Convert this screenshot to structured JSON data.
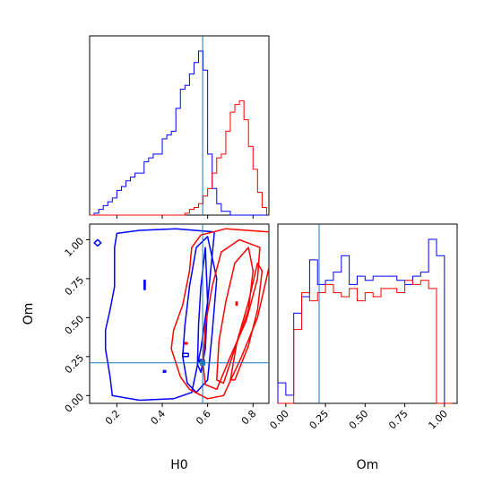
{
  "chart_data": {
    "type": "corner",
    "parameters": [
      "H0",
      "Om"
    ],
    "truth": {
      "H0": 0.578,
      "Om": 0.21
    },
    "colors": {
      "blue_run": "#0000ff",
      "red_run": "#ff0000",
      "truth_line": "#1f77b4"
    },
    "panels": [
      {
        "id": "h0-marginal",
        "type": "histogram",
        "xlim": [
          0.08,
          0.87
        ],
        "x_ticks": [
          0.2,
          0.4,
          0.6,
          0.8
        ],
        "bin_edges": [
          0.08,
          0.1,
          0.12,
          0.14,
          0.16,
          0.18,
          0.2,
          0.22,
          0.24,
          0.26,
          0.28,
          0.3,
          0.32,
          0.34,
          0.36,
          0.38,
          0.4,
          0.42,
          0.44,
          0.46,
          0.48,
          0.5,
          0.52,
          0.54,
          0.56,
          0.58,
          0.6,
          0.62,
          0.64,
          0.66,
          0.68,
          0.7,
          0.72,
          0.74,
          0.76,
          0.78,
          0.8,
          0.82,
          0.84,
          0.86
        ],
        "series": [
          {
            "color": "blue_run",
            "values": [
              0,
              0.5,
              1.5,
              2.5,
              3.5,
              4.5,
              6.5,
              7.5,
              9,
              10,
              11,
              11,
              14,
              15,
              16,
              16,
              20,
              21,
              22,
              28,
              33,
              34,
              37,
              40,
              43,
              38,
              16,
              7,
              3,
              1,
              1,
              0,
              0,
              0,
              0,
              0,
              0,
              0,
              0
            ]
          },
          {
            "color": "red_run",
            "values": [
              0,
              0,
              0,
              0,
              0,
              0,
              0,
              0,
              0,
              0,
              0,
              0,
              0,
              0,
              0,
              0,
              0,
              0,
              0,
              0,
              0,
              0.5,
              1.5,
              2,
              3,
              5,
              7,
              11,
              15,
              16,
              22,
              27,
              29,
              30,
              25,
              18,
              12,
              6,
              2
            ]
          }
        ]
      },
      {
        "id": "om-marginal",
        "type": "histogram",
        "xlim": [
          -0.05,
          1.08
        ],
        "x_ticks": [
          0.0,
          0.25,
          0.5,
          0.75,
          1.0
        ],
        "x_tick_labels": [
          "0.00",
          "0.25",
          "0.50",
          "0.75",
          "1.00"
        ],
        "xlabel": "Om",
        "bin_edges": [
          -0.05,
          0.0,
          0.05,
          0.1,
          0.15,
          0.2,
          0.25,
          0.3,
          0.35,
          0.4,
          0.45,
          0.5,
          0.55,
          0.6,
          0.65,
          0.7,
          0.75,
          0.8,
          0.85,
          0.9,
          0.95,
          1.0,
          1.05
        ],
        "series": [
          {
            "color": "blue_run",
            "values": [
              5,
              2,
              22,
              26,
              35,
              29,
              30,
              32,
              36,
              29,
              31,
              30,
              31,
              31,
              31,
              30,
              29,
              31,
              32,
              40,
              36,
              0
            ]
          },
          {
            "color": "red_run",
            "values": [
              0,
              0,
              18,
              27,
              25,
              27,
              29,
              27,
              26,
              28,
              25,
              27,
              26,
              28,
              28,
              27,
              30,
              29,
              30,
              28,
              0,
              0
            ]
          }
        ]
      },
      {
        "id": "h0-om-joint",
        "type": "contour",
        "xlim": [
          0.08,
          0.87
        ],
        "ylim": [
          -0.05,
          1.1
        ],
        "x_ticks": [
          0.2,
          0.4,
          0.6,
          0.8
        ],
        "y_ticks": [
          0.0,
          0.25,
          0.5,
          0.75,
          1.0
        ],
        "y_tick_labels": [
          "0.00",
          "0.25",
          "0.50",
          "0.75",
          "1.00"
        ],
        "xlabel": "H0",
        "ylabel": "Om",
        "series": [
          {
            "color": "blue_run",
            "contours": [
              [
                [
                  0.18,
                  0.0
                ],
                [
                  0.3,
                  -0.03
                ],
                [
                  0.45,
                  -0.02
                ],
                [
                  0.53,
                  0.02
                ],
                [
                  0.57,
                  0.3
                ],
                [
                  0.6,
                  0.6
                ],
                [
                  0.62,
                  0.9
                ],
                [
                  0.63,
                  1.05
                ],
                [
                  0.46,
                  1.07
                ],
                [
                  0.3,
                  1.06
                ],
                [
                  0.2,
                  1.04
                ],
                [
                  0.19,
                  0.95
                ],
                [
                  0.19,
                  0.7
                ],
                [
                  0.17,
                  0.55
                ],
                [
                  0.15,
                  0.42
                ],
                [
                  0.15,
                  0.3
                ],
                [
                  0.17,
                  0.12
                ]
              ],
              [
                [
                  0.51,
                  0.08
                ],
                [
                  0.55,
                  0.02
                ],
                [
                  0.6,
                  0.1
                ],
                [
                  0.62,
                  0.4
                ],
                [
                  0.64,
                  0.75
                ],
                [
                  0.6,
                  1.02
                ],
                [
                  0.55,
                  0.95
                ],
                [
                  0.52,
                  0.7
                ],
                [
                  0.5,
                  0.45
                ],
                [
                  0.49,
                  0.25
                ]
              ],
              [
                [
                  0.555,
                  0.2
                ],
                [
                  0.57,
                  0.15
                ],
                [
                  0.59,
                  0.3
                ],
                [
                  0.6,
                  0.6
                ],
                [
                  0.59,
                  0.95
                ],
                [
                  0.57,
                  0.7
                ],
                [
                  0.56,
                  0.45
                ]
              ],
              [
                [
                  0.1,
                  0.98
                ],
                [
                  0.115,
                  0.96
                ],
                [
                  0.13,
                  0.98
                ],
                [
                  0.115,
                  1.0
                ]
              ],
              [
                [
                  0.32,
                  0.68
                ],
                [
                  0.325,
                  0.68
                ],
                [
                  0.325,
                  0.74
                ],
                [
                  0.32,
                  0.74
                ]
              ],
              [
                [
                  0.405,
                  0.15
                ],
                [
                  0.415,
                  0.15
                ],
                [
                  0.415,
                  0.16
                ],
                [
                  0.405,
                  0.16
                ]
              ],
              [
                [
                  0.49,
                  0.25
                ],
                [
                  0.515,
                  0.25
                ],
                [
                  0.515,
                  0.27
                ],
                [
                  0.49,
                  0.27
                ]
              ],
              [
                [
                  0.565,
                  0.21
                ],
                [
                  0.585,
                  0.21
                ],
                [
                  0.585,
                  0.23
                ],
                [
                  0.565,
                  0.23
                ]
              ]
            ]
          },
          {
            "color": "red_run",
            "contours": [
              [
                [
                  0.52,
                  0.04
                ],
                [
                  0.6,
                  -0.02
                ],
                [
                  0.67,
                  0.0
                ],
                [
                  0.75,
                  0.25
                ],
                [
                  0.82,
                  0.5
                ],
                [
                  0.87,
                  0.82
                ],
                [
                  0.87,
                  1.05
                ],
                [
                  0.68,
                  1.07
                ],
                [
                  0.57,
                  1.03
                ],
                [
                  0.53,
                  0.95
                ],
                [
                  0.52,
                  0.8
                ],
                [
                  0.49,
                  0.58
                ],
                [
                  0.45,
                  0.42
                ],
                [
                  0.44,
                  0.3
                ],
                [
                  0.48,
                  0.12
                ]
              ],
              [
                [
                  0.59,
                  0.07
                ],
                [
                  0.64,
                  0.04
                ],
                [
                  0.7,
                  0.25
                ],
                [
                  0.77,
                  0.48
                ],
                [
                  0.82,
                  0.75
                ],
                [
                  0.83,
                  0.95
                ],
                [
                  0.74,
                  1.0
                ],
                [
                  0.66,
                  0.92
                ],
                [
                  0.62,
                  0.7
                ],
                [
                  0.59,
                  0.45
                ],
                [
                  0.58,
                  0.2
                ]
              ],
              [
                [
                  0.64,
                  0.1
                ],
                [
                  0.67,
                  0.08
                ],
                [
                  0.72,
                  0.3
                ],
                [
                  0.78,
                  0.55
                ],
                [
                  0.8,
                  0.8
                ],
                [
                  0.78,
                  0.95
                ],
                [
                  0.72,
                  0.85
                ],
                [
                  0.68,
                  0.6
                ],
                [
                  0.65,
                  0.35
                ]
              ],
              [
                [
                  0.7,
                  0.1
                ],
                [
                  0.72,
                  0.1
                ],
                [
                  0.78,
                  0.32
                ],
                [
                  0.82,
                  0.55
                ],
                [
                  0.84,
                  0.8
                ],
                [
                  0.82,
                  0.85
                ],
                [
                  0.78,
                  0.6
                ],
                [
                  0.73,
                  0.35
                ]
              ],
              [
                [
                  0.5,
                  0.33
                ],
                [
                  0.51,
                  0.33
                ],
                [
                  0.51,
                  0.34
                ],
                [
                  0.5,
                  0.34
                ]
              ],
              [
                [
                  0.725,
                  0.58
                ],
                [
                  0.73,
                  0.58
                ],
                [
                  0.73,
                  0.6
                ],
                [
                  0.725,
                  0.6
                ]
              ]
            ]
          }
        ]
      }
    ]
  }
}
